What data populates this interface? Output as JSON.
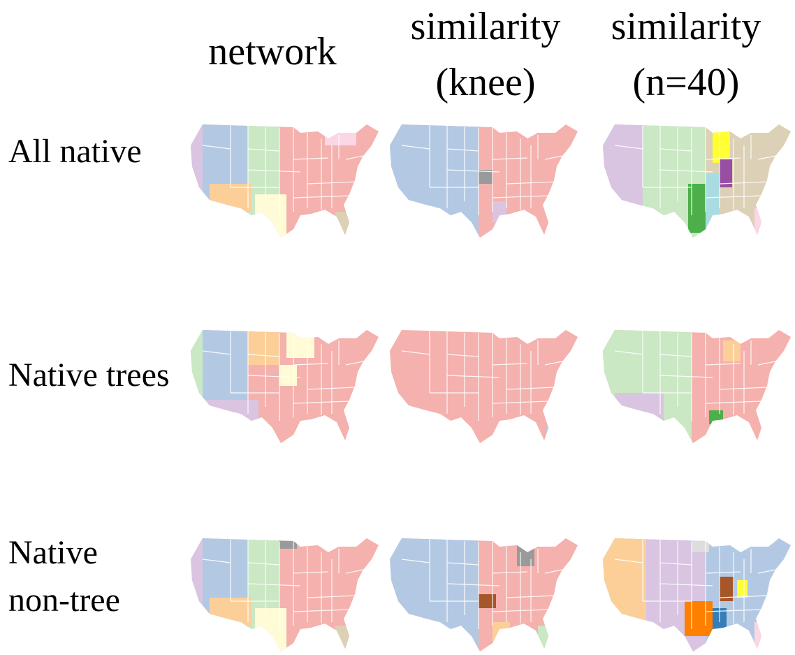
{
  "columns": [
    [
      "network"
    ],
    [
      "similarity",
      "(knee)"
    ],
    [
      "similarity",
      "(n=40)"
    ]
  ],
  "rows": [
    [
      "All native"
    ],
    [
      "Native trees"
    ],
    [
      "Native",
      "non-tree"
    ]
  ]
}
